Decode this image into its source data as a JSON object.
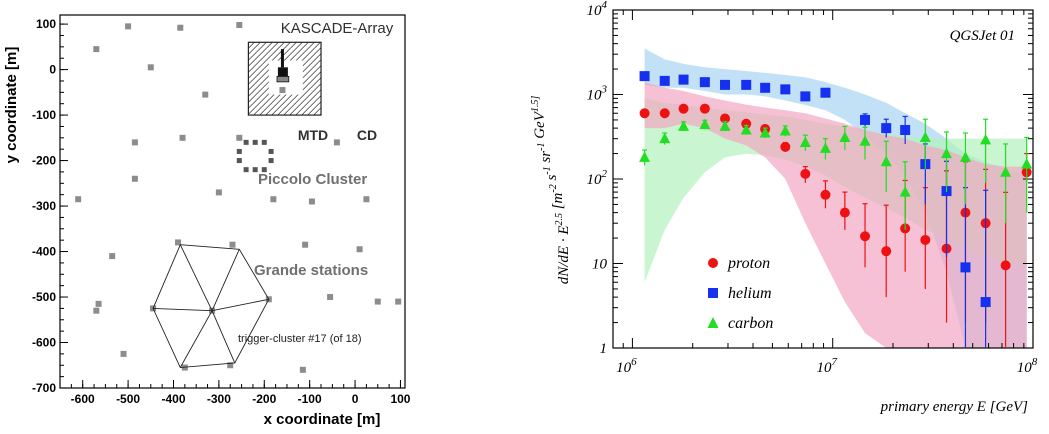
{
  "chart_data": [
    {
      "type": "scatter",
      "xlabel": "x coordinate [m]",
      "ylabel": "y coordinate [m]",
      "xlim": [
        -650,
        110
      ],
      "ylim": [
        -700,
        120
      ],
      "xticks": [
        -600,
        -500,
        -400,
        -300,
        -200,
        -100,
        0,
        100
      ],
      "yticks": [
        100,
        0,
        -100,
        -200,
        -300,
        -400,
        -500,
        -600,
        -700
      ],
      "grid": false,
      "annotations": {
        "array_title": "KASCADE-Array",
        "mtd": "MTD",
        "cd": "CD",
        "piccolo": "Piccolo Cluster",
        "grande": "Grande stations",
        "trigger": "trigger-cluster #17 (of 18)"
      },
      "colors": {
        "station": "#8c8c8c",
        "piccolo": "#555555",
        "label": "#707070"
      },
      "stations": [
        [
          -500,
          95
        ],
        [
          -385,
          92
        ],
        [
          -255,
          98
        ],
        [
          -570,
          45
        ],
        [
          -450,
          5
        ],
        [
          -330,
          -55
        ],
        [
          -160,
          -45
        ],
        [
          -485,
          -160
        ],
        [
          -380,
          -150
        ],
        [
          -255,
          -150
        ],
        [
          -40,
          -160
        ],
        [
          -485,
          -240
        ],
        [
          -300,
          -270
        ],
        [
          -180,
          -285
        ],
        [
          -95,
          -290
        ],
        [
          25,
          -285
        ],
        [
          -610,
          -285
        ],
        [
          -535,
          -410
        ],
        [
          -390,
          -380
        ],
        [
          -270,
          -385
        ],
        [
          -110,
          -385
        ],
        [
          10,
          -395
        ],
        [
          -570,
          -530
        ],
        [
          -445,
          -525
        ],
        [
          -375,
          -655
        ],
        [
          -275,
          -650
        ],
        [
          -190,
          -505
        ],
        [
          -315,
          -530
        ],
        [
          -55,
          -500
        ],
        [
          50,
          -510
        ],
        [
          -510,
          -625
        ],
        [
          -115,
          -660
        ],
        [
          95,
          -510
        ],
        [
          -565,
          -515
        ]
      ],
      "trigger_hexagon": [
        [
          -385,
          -385
        ],
        [
          -255,
          -395
        ],
        [
          -190,
          -505
        ],
        [
          -265,
          -645
        ],
        [
          -385,
          -655
        ],
        [
          -445,
          -525
        ]
      ],
      "trigger_center": [
        -315,
        -530
      ],
      "piccolo_cluster": [
        [
          -240,
          -160
        ],
        [
          -220,
          -160
        ],
        [
          -200,
          -160
        ],
        [
          -255,
          -180
        ],
        [
          -185,
          -180
        ],
        [
          -255,
          -200
        ],
        [
          -185,
          -200
        ],
        [
          -240,
          -220
        ],
        [
          -220,
          -220
        ],
        [
          -200,
          -220
        ]
      ]
    },
    {
      "type": "scatter",
      "title": "QGSJet 01",
      "xlabel": "primary energy E  [GeV]",
      "ylabel": "dN/dE · E^2.5  [m^-2 s^-1 sr^-1 GeV^1.5]",
      "xscale": "log",
      "yscale": "log",
      "xlim": [
        800000,
        100000000
      ],
      "ylim": [
        1,
        10000
      ],
      "xtick_labels": [
        "10^6",
        "10^7",
        "10^8"
      ],
      "ytick_labels": [
        "1",
        "10",
        "10^2",
        "10^3",
        "10^4"
      ],
      "legend_position": "bottom-left",
      "series": [
        {
          "name": "proton",
          "marker": "circle",
          "color": "#ee1111",
          "band_color": "#f2a6c2",
          "x": [
            1150000.0,
            1450000.0,
            1800000.0,
            2300000.0,
            2900000.0,
            3700000.0,
            4600000.0,
            5800000.0,
            7300000.0,
            9200000.0,
            11500000.0,
            14500000.0,
            18500000.0,
            23000000.0,
            29000000.0,
            37000000.0,
            46000000.0,
            58000000.0,
            73000000.0,
            93000000.0
          ],
          "y": [
            600,
            600,
            680,
            680,
            520,
            450,
            390,
            240,
            115,
            65,
            40,
            21,
            14,
            26,
            19,
            15,
            40,
            30,
            9.5,
            120
          ],
          "err_up": [
            60,
            60,
            70,
            70,
            55,
            50,
            45,
            30,
            25,
            30,
            30,
            30,
            35,
            70,
            60,
            110,
            120,
            100,
            60,
            80
          ],
          "err_down": [
            60,
            60,
            70,
            70,
            55,
            50,
            45,
            30,
            25,
            20,
            15,
            12,
            10,
            18,
            14,
            13,
            38,
            28,
            8.5,
            30
          ],
          "band_hi": [
            1400,
            1200,
            1100,
            950,
            850,
            760,
            700,
            650,
            600,
            520,
            450,
            380,
            330,
            300,
            250,
            220,
            180,
            150,
            140,
            140
          ],
          "band_lo": [
            400,
            400,
            450,
            400,
            300,
            250,
            180,
            100,
            30,
            10,
            3.5,
            1.5,
            1,
            1,
            1,
            1,
            1,
            1,
            1,
            1
          ]
        },
        {
          "name": "helium",
          "marker": "square",
          "color": "#1530ee",
          "band_color": "#a9d4f2",
          "x": [
            1150000.0,
            1450000.0,
            1800000.0,
            2300000.0,
            2900000.0,
            3700000.0,
            4600000.0,
            5800000.0,
            7300000.0,
            9200000.0,
            11500000.0,
            14500000.0,
            18500000.0,
            23000000.0,
            29000000.0,
            37000000.0,
            46000000.0,
            58000000.0,
            73000000.0,
            93000000.0
          ],
          "y": [
            1650,
            1450,
            1500,
            1400,
            1300,
            1300,
            1200,
            1150,
            950,
            1050,
            null,
            500,
            400,
            380,
            150,
            72,
            9,
            3.5,
            null,
            null
          ],
          "err_up": [
            100,
            90,
            90,
            90,
            80,
            80,
            75,
            70,
            65,
            70,
            null,
            90,
            110,
            170,
            110,
            90,
            70,
            70,
            null,
            null
          ],
          "err_down": [
            100,
            90,
            90,
            90,
            80,
            80,
            75,
            70,
            65,
            70,
            null,
            80,
            90,
            120,
            100,
            60,
            8,
            3,
            null,
            null
          ],
          "band_hi": [
            3500,
            2600,
            2300,
            2100,
            2000,
            1900,
            1800,
            1700,
            1600,
            1400,
            1200,
            1000,
            800,
            600,
            450,
            300,
            200,
            160,
            130,
            110
          ],
          "band_lo": [
            1300,
            1200,
            1200,
            1100,
            1000,
            1000,
            950,
            850,
            750,
            650,
            500,
            330,
            200,
            110,
            40,
            8,
            1,
            1,
            1,
            1
          ]
        },
        {
          "name": "carbon",
          "marker": "triangle",
          "color": "#22dd22",
          "band_color": "#b2f2bc",
          "x": [
            1150000.0,
            1450000.0,
            1800000.0,
            2300000.0,
            2900000.0,
            3700000.0,
            4600000.0,
            5800000.0,
            7300000.0,
            9200000.0,
            11500000.0,
            14500000.0,
            18500000.0,
            23000000.0,
            29000000.0,
            37000000.0,
            46000000.0,
            58000000.0,
            73000000.0,
            93000000.0
          ],
          "y": [
            180,
            300,
            420,
            440,
            420,
            380,
            350,
            370,
            270,
            230,
            310,
            280,
            160,
            70,
            310,
            200,
            180,
            290,
            120,
            150
          ],
          "err_up": [
            40,
            50,
            55,
            55,
            55,
            50,
            50,
            55,
            60,
            70,
            110,
            130,
            120,
            90,
            200,
            160,
            170,
            220,
            140,
            160
          ],
          "err_down": [
            35,
            45,
            50,
            50,
            50,
            45,
            45,
            50,
            55,
            60,
            90,
            110,
            90,
            45,
            180,
            130,
            130,
            200,
            90,
            110
          ],
          "band_hi": [
            900,
            800,
            750,
            700,
            650,
            620,
            580,
            550,
            500,
            450,
            420,
            380,
            340,
            320,
            300,
            300,
            300,
            300,
            300,
            300
          ],
          "band_lo": [
            6,
            25,
            60,
            120,
            180,
            200,
            190,
            170,
            140,
            110,
            80,
            60,
            45,
            35,
            25,
            20,
            15,
            12,
            10,
            10
          ]
        }
      ]
    }
  ]
}
